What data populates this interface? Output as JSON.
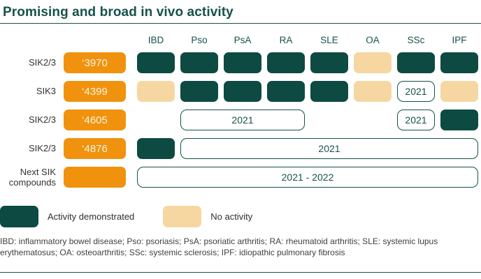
{
  "title": "Promising and broad in vivo activity",
  "colors": {
    "teal_text": "#16524b",
    "activity": "#0d4a42",
    "no_activity": "#f6d7a1",
    "accent_orange": "#f0920e",
    "badge_text": "#fdf4df"
  },
  "chart_data": {
    "type": "heatmap",
    "title": "Promising and broad in vivo activity",
    "columns": [
      "IBD",
      "Pso",
      "PsA",
      "RA",
      "SLE",
      "OA",
      "SSc",
      "IPF"
    ],
    "status_meaning": {
      "activity": "Activity demonstrated",
      "no_activity": "No activity",
      "planned": "Planned / ongoing (year shown)",
      "empty": "No data shown"
    },
    "rows": [
      {
        "target": "SIK2/3",
        "compound": "‘3970",
        "cells": [
          {
            "col": "IBD",
            "span": 1,
            "status": "activity"
          },
          {
            "col": "Pso",
            "span": 1,
            "status": "activity"
          },
          {
            "col": "PsA",
            "span": 1,
            "status": "activity"
          },
          {
            "col": "RA",
            "span": 1,
            "status": "activity"
          },
          {
            "col": "SLE",
            "span": 1,
            "status": "activity"
          },
          {
            "col": "OA",
            "span": 1,
            "status": "no_activity"
          },
          {
            "col": "SSc",
            "span": 1,
            "status": "activity"
          },
          {
            "col": "IPF",
            "span": 1,
            "status": "activity"
          }
        ]
      },
      {
        "target": "SIK3",
        "compound": "‘4399",
        "cells": [
          {
            "col": "IBD",
            "span": 1,
            "status": "no_activity"
          },
          {
            "col": "Pso",
            "span": 1,
            "status": "activity"
          },
          {
            "col": "PsA",
            "span": 1,
            "status": "activity"
          },
          {
            "col": "RA",
            "span": 1,
            "status": "activity"
          },
          {
            "col": "SLE",
            "span": 1,
            "status": "activity"
          },
          {
            "col": "OA",
            "span": 1,
            "status": "no_activity"
          },
          {
            "col": "SSc",
            "span": 1,
            "status": "planned",
            "label": "2021"
          },
          {
            "col": "IPF",
            "span": 1,
            "status": "no_activity"
          }
        ]
      },
      {
        "target": "SIK2/3",
        "compound": "‘4605",
        "cells": [
          {
            "col": "IBD",
            "span": 1,
            "status": "empty"
          },
          {
            "col": "Pso",
            "span": 3,
            "status": "planned",
            "label": "2021"
          },
          {
            "col": "SLE",
            "span": 1,
            "status": "empty"
          },
          {
            "col": "OA",
            "span": 1,
            "status": "empty"
          },
          {
            "col": "SSc",
            "span": 1,
            "status": "planned",
            "label": "2021"
          },
          {
            "col": "IPF",
            "span": 1,
            "status": "activity"
          }
        ]
      },
      {
        "target": "SIK2/3",
        "compound": "‘4876",
        "cells": [
          {
            "col": "IBD",
            "span": 1,
            "status": "activity"
          },
          {
            "col": "Pso",
            "span": 7,
            "status": "planned",
            "label": "2021"
          }
        ]
      },
      {
        "target": "Next SIK compounds",
        "compound": "",
        "cells": [
          {
            "col": "IBD",
            "span": 8,
            "status": "planned",
            "label": "2021 - 2022"
          }
        ]
      }
    ],
    "legend": [
      {
        "status": "activity",
        "label": "Activity demonstrated"
      },
      {
        "status": "no_activity",
        "label": "No activity"
      }
    ]
  },
  "footnote": "IBD: inflammatory bowel disease; Pso: psoriasis; PsA: psoriatic arthritis; RA: rheumatoid arthritis; SLE: systemic lupus erythematosus; OA: osteoarthritis; SSc: systemic sclerosis; IPF: idiopathic pulmonary fibrosis"
}
